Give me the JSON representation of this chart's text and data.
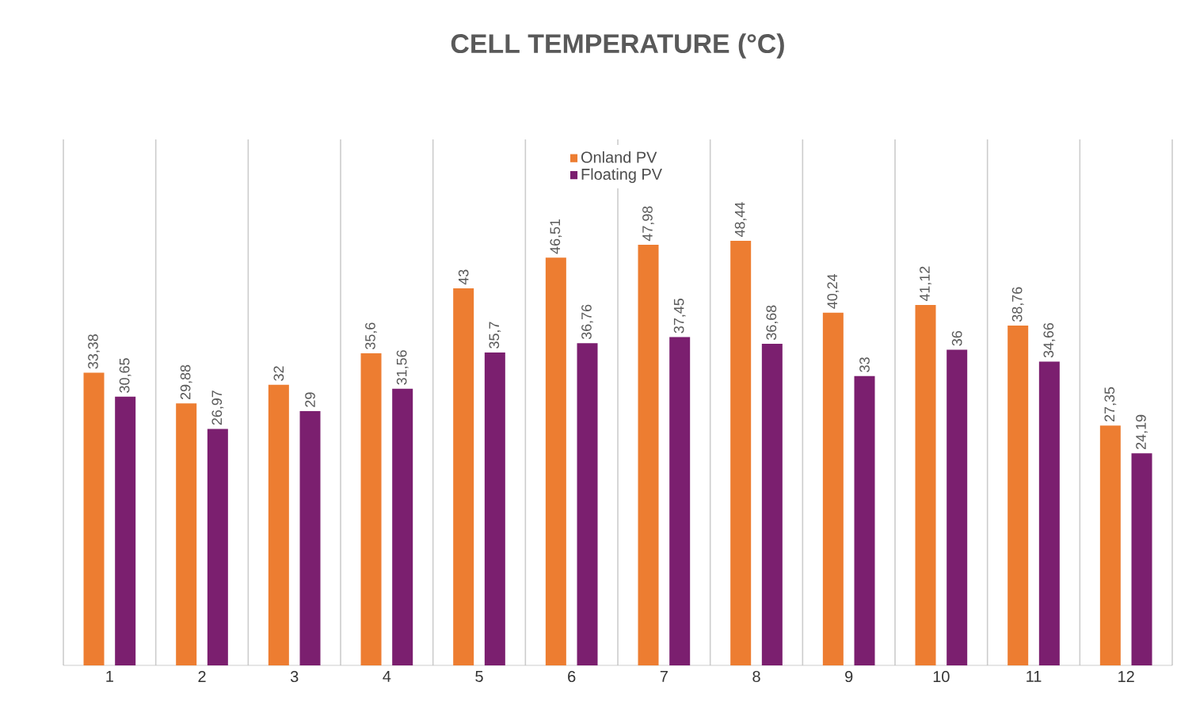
{
  "chart_data": {
    "type": "bar",
    "title": "CELL TEMPERATURE (°C)",
    "categories": [
      "1",
      "2",
      "3",
      "4",
      "5",
      "6",
      "7",
      "8",
      "9",
      "10",
      "11",
      "12"
    ],
    "series": [
      {
        "name": "Onland PV",
        "color": "#ed7d31",
        "values": [
          33.38,
          29.88,
          32,
          35.6,
          43,
          46.51,
          47.98,
          48.44,
          40.24,
          41.12,
          38.76,
          27.35
        ],
        "value_labels": [
          "33,38",
          "29,88",
          "32",
          "35,6",
          "43",
          "46,51",
          "47,98",
          "48,44",
          "40,24",
          "41,12",
          "38,76",
          "27,35"
        ]
      },
      {
        "name": "Floating PV",
        "color": "#7b1f6f",
        "values": [
          30.65,
          26.97,
          29,
          31.56,
          35.7,
          36.76,
          37.45,
          36.68,
          33,
          36,
          34.66,
          24.19
        ],
        "value_labels": [
          "30,65",
          "26,97",
          "29",
          "31,56",
          "35,7",
          "36,76",
          "37,45",
          "36,68",
          "33",
          "36",
          "34,66",
          "24,19"
        ]
      }
    ],
    "ylim": [
      0,
      60
    ],
    "grid": "x",
    "legend": "top",
    "tick_labels": "x"
  }
}
